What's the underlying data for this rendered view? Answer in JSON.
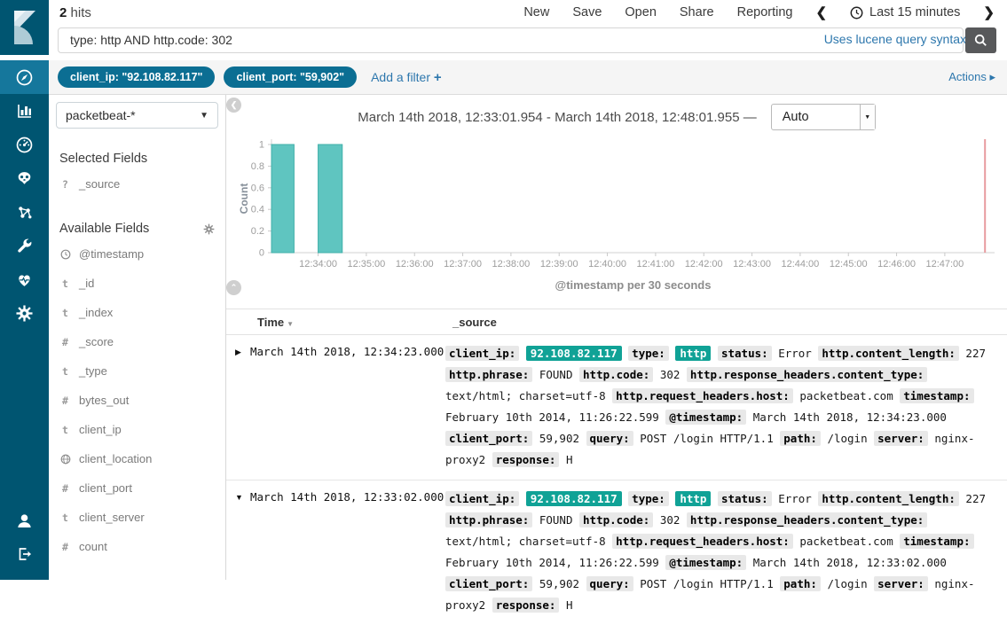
{
  "header": {
    "hits_count": "2",
    "hits_label": "hits",
    "menu": [
      "New",
      "Save",
      "Open",
      "Share",
      "Reporting"
    ],
    "time_range": "Last 15 minutes"
  },
  "search": {
    "query": "type: http AND http.code: 302",
    "syntax_hint": "Uses lucene query syntax"
  },
  "filter_bar": {
    "pills": [
      "client_ip: \"92.108.82.117\"",
      "client_port: \"59,902\""
    ],
    "add_filter_label": "Add a filter",
    "add_filter_plus": "+",
    "actions_label": "Actions"
  },
  "nav": {
    "items": [
      {
        "icon": "compass",
        "name": "discover",
        "active": true
      },
      {
        "icon": "bar-chart",
        "name": "visualize",
        "active": false
      },
      {
        "icon": "gauge",
        "name": "dashboard",
        "active": false
      },
      {
        "icon": "mask",
        "name": "timelion",
        "active": false
      },
      {
        "icon": "molecule",
        "name": "graph",
        "active": false
      },
      {
        "icon": "wrench",
        "name": "dev-tools",
        "active": false
      },
      {
        "icon": "heartbeat",
        "name": "monitoring",
        "active": false
      },
      {
        "icon": "gear",
        "name": "management",
        "active": false
      }
    ],
    "bottom_items": [
      {
        "icon": "user",
        "name": "account",
        "active": false
      },
      {
        "icon": "logout",
        "name": "logout",
        "active": false
      }
    ]
  },
  "sidebar": {
    "index_pattern": "packetbeat-*",
    "selected_fields_title": "Selected Fields",
    "selected_fields": [
      {
        "type": "question",
        "name": "_source"
      }
    ],
    "available_fields_title": "Available Fields",
    "available_fields": [
      {
        "type": "clock",
        "name": "@timestamp"
      },
      {
        "type": "t",
        "name": "_id"
      },
      {
        "type": "t",
        "name": "_index"
      },
      {
        "type": "hash",
        "name": "_score"
      },
      {
        "type": "t",
        "name": "_type"
      },
      {
        "type": "hash",
        "name": "bytes_out"
      },
      {
        "type": "t",
        "name": "client_ip"
      },
      {
        "type": "globe",
        "name": "client_location"
      },
      {
        "type": "hash",
        "name": "client_port"
      },
      {
        "type": "t",
        "name": "client_server"
      },
      {
        "type": "hash",
        "name": "count"
      }
    ]
  },
  "chart_data": {
    "type": "bar",
    "title": "March 14th 2018, 12:33:01.954 - March 14th 2018, 12:48:01.955 —",
    "interval_label": "Auto",
    "ylabel": "Count",
    "xlabel": "@timestamp per 30 seconds",
    "x_start": "12:33:01.954",
    "x_end": "12:48:01.955",
    "bucket_seconds": 30,
    "buckets": [
      {
        "time": "12:33:00",
        "count": 1
      },
      {
        "time": "12:34:00",
        "count": 1
      }
    ],
    "ylim": [
      0,
      1
    ],
    "yticks": [
      0,
      0.2,
      0.4,
      0.6,
      0.8,
      1
    ],
    "xticks": [
      "12:34:00",
      "12:35:00",
      "12:36:00",
      "12:37:00",
      "12:38:00",
      "12:39:00",
      "12:40:00",
      "12:41:00",
      "12:42:00",
      "12:43:00",
      "12:44:00",
      "12:45:00",
      "12:46:00",
      "12:47:00"
    ],
    "time_marker": "12:47:50",
    "bar_color": "#5fc5c0",
    "bar_border": "#41b0aa",
    "marker_color": "#e89b9e"
  },
  "table": {
    "columns": [
      "Time",
      "_source"
    ],
    "rows": [
      {
        "expanded": false,
        "time": "March 14th 2018, 12:34:23.000",
        "source": [
          {
            "k": "client_ip:",
            "v": "92.108.82.117",
            "hl": true
          },
          {
            "k": "type:",
            "v": "http",
            "hl": true
          },
          {
            "k": "status:",
            "v": "Error",
            "hl": false
          },
          {
            "k": "http.content_length:",
            "v": "227",
            "hl": false
          },
          {
            "k": "http.phrase:",
            "v": "FOUND",
            "hl": false
          },
          {
            "k": "http.code:",
            "v": "302",
            "hl": false
          },
          {
            "k": "http.response_headers.content_type:",
            "v": "text/html; charset=utf-8",
            "hl": false
          },
          {
            "k": "http.request_headers.host:",
            "v": "packetbeat.com",
            "hl": false
          },
          {
            "k": "timestamp:",
            "v": "February 10th 2014, 11:26:22.599",
            "hl": false
          },
          {
            "k": "@timestamp:",
            "v": "March 14th 2018, 12:34:23.000",
            "hl": false
          },
          {
            "k": "client_port:",
            "v": "59,902",
            "hl": false
          },
          {
            "k": "query:",
            "v": "POST /login HTTP/1.1",
            "hl": false
          },
          {
            "k": "path:",
            "v": "/login",
            "hl": false
          },
          {
            "k": "server:",
            "v": "nginx-proxy2",
            "hl": false
          },
          {
            "k": "response:",
            "v": "H",
            "hl": false
          }
        ]
      },
      {
        "expanded": true,
        "time": "March 14th 2018, 12:33:02.000",
        "source": [
          {
            "k": "client_ip:",
            "v": "92.108.82.117",
            "hl": true
          },
          {
            "k": "type:",
            "v": "http",
            "hl": true
          },
          {
            "k": "status:",
            "v": "Error",
            "hl": false
          },
          {
            "k": "http.content_length:",
            "v": "227",
            "hl": false
          },
          {
            "k": "http.phrase:",
            "v": "FOUND",
            "hl": false
          },
          {
            "k": "http.code:",
            "v": "302",
            "hl": false
          },
          {
            "k": "http.response_headers.content_type:",
            "v": "text/html; charset=utf-8",
            "hl": false
          },
          {
            "k": "http.request_headers.host:",
            "v": "packetbeat.com",
            "hl": false
          },
          {
            "k": "timestamp:",
            "v": "February 10th 2014, 11:26:22.599",
            "hl": false
          },
          {
            "k": "@timestamp:",
            "v": "March 14th 2018, 12:33:02.000",
            "hl": false
          },
          {
            "k": "client_port:",
            "v": "59,902",
            "hl": false
          },
          {
            "k": "query:",
            "v": "POST /login HTTP/1.1",
            "hl": false
          },
          {
            "k": "path:",
            "v": "/login",
            "hl": false
          },
          {
            "k": "server:",
            "v": "nginx-proxy2",
            "hl": false
          },
          {
            "k": "response:",
            "v": "H",
            "hl": false
          }
        ]
      }
    ]
  },
  "colors": {
    "rail_bg": "#005571",
    "rail_active": "#15779c",
    "pill_bg": "#0b6e93",
    "link_blue": "#2d77ad",
    "highlight_teal": "#10a296",
    "badge_gray": "#e8e8e8",
    "search_btn": "#58595b"
  }
}
